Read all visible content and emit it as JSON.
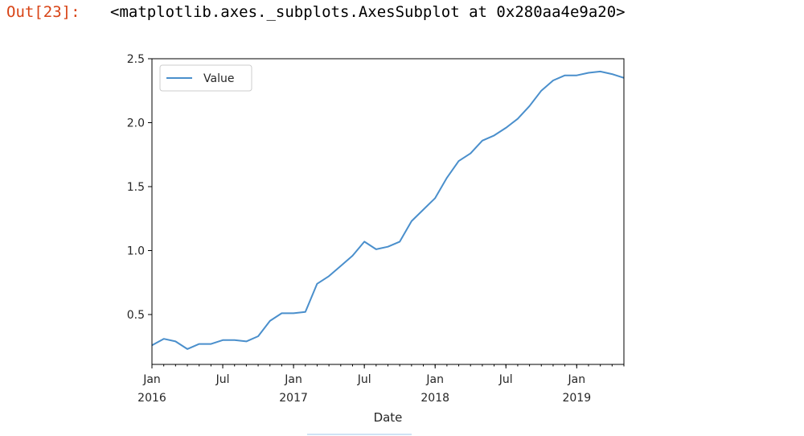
{
  "cell": {
    "prompt": "Out[23]:",
    "repr": "<matplotlib.axes._subplots.AxesSubplot at 0x280aa4e9a20>"
  },
  "chart_data": {
    "type": "line",
    "xlabel": "Date",
    "ylabel": "",
    "ylim": [
      0.11,
      2.5
    ],
    "xlim": [
      "2016-01",
      "2019-05"
    ],
    "yticks": [
      "0.5",
      "1.0",
      "1.5",
      "2.0",
      "2.5"
    ],
    "xticks": [
      {
        "date": "2016-01",
        "line1": "Jan",
        "line2": "2016"
      },
      {
        "date": "2016-07",
        "line1": "Jul",
        "line2": ""
      },
      {
        "date": "2017-01",
        "line1": "Jan",
        "line2": "2017"
      },
      {
        "date": "2017-07",
        "line1": "Jul",
        "line2": ""
      },
      {
        "date": "2018-01",
        "line1": "Jan",
        "line2": "2018"
      },
      {
        "date": "2018-07",
        "line1": "Jul",
        "line2": ""
      },
      {
        "date": "2019-01",
        "line1": "Jan",
        "line2": "2019"
      }
    ],
    "legend": {
      "location": "upper left",
      "entries": [
        "Value"
      ]
    },
    "grid": false,
    "line_color": "#4a8fcc",
    "series": [
      {
        "name": "Value",
        "x": [
          "2016-01",
          "2016-02",
          "2016-03",
          "2016-04",
          "2016-05",
          "2016-06",
          "2016-07",
          "2016-08",
          "2016-09",
          "2016-10",
          "2016-11",
          "2016-12",
          "2017-01",
          "2017-02",
          "2017-03",
          "2017-04",
          "2017-05",
          "2017-06",
          "2017-07",
          "2017-08",
          "2017-09",
          "2017-10",
          "2017-11",
          "2017-12",
          "2018-01",
          "2018-02",
          "2018-03",
          "2018-04",
          "2018-05",
          "2018-06",
          "2018-07",
          "2018-08",
          "2018-09",
          "2018-10",
          "2018-11",
          "2018-12",
          "2019-01",
          "2019-02",
          "2019-03",
          "2019-04",
          "2019-05"
        ],
        "values": [
          0.26,
          0.31,
          0.29,
          0.23,
          0.27,
          0.27,
          0.3,
          0.3,
          0.29,
          0.33,
          0.45,
          0.51,
          0.51,
          0.52,
          0.74,
          0.8,
          0.88,
          0.96,
          1.07,
          1.01,
          1.03,
          1.07,
          1.23,
          1.32,
          1.41,
          1.57,
          1.7,
          1.76,
          1.86,
          1.9,
          1.96,
          2.03,
          2.13,
          2.25,
          2.33,
          2.37,
          2.37,
          2.39,
          2.4,
          2.38,
          2.35
        ]
      }
    ]
  }
}
